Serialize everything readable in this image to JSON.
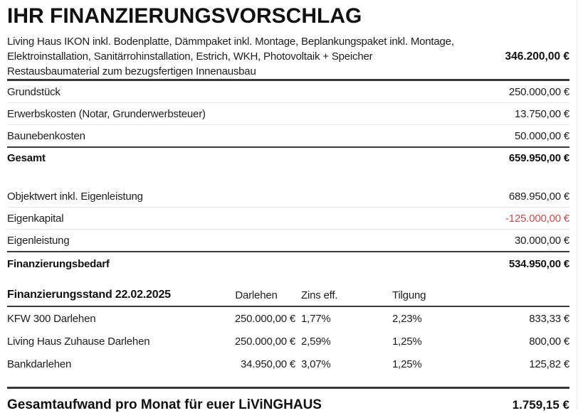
{
  "title": "IHR FINANZIERUNGSVORSCHLAG",
  "house_package": {
    "description_lines": [
      "Living Haus IKON inkl. Bodenplatte, Dämmpaket inkl. Montage, Beplankungspaket inkl. Montage,",
      "Elektroinstallation, Sanitärrohinstallation, Estrich, WKH, Photovoltaik + Speicher",
      "Restausbaumaterial zum bezugsfertigen Innenausbau"
    ],
    "amount": "346.200,00 €"
  },
  "cost_rows": [
    {
      "label": "Grundstück",
      "amount": "250.000,00 €"
    },
    {
      "label": "Erwerbskosten (Notar, Grunderwerbsteuer)",
      "amount": "13.750,00 €"
    },
    {
      "label": "Baunebenkosten",
      "amount": "50.000,00 €"
    }
  ],
  "total_row": {
    "label": "Gesamt",
    "amount": "659.950,00 €"
  },
  "equity_rows": [
    {
      "label": "Objektwert inkl. Eigenleistung",
      "amount": "689.950,00 €"
    },
    {
      "label": "Eigenkapital",
      "amount": "-125.000,00 €"
    },
    {
      "label": "Eigenleistung",
      "amount": "30.000,00 €"
    }
  ],
  "financing_need": {
    "label": "Finanzierungsbedarf",
    "amount": "534.950,00 €"
  },
  "loan_table": {
    "header": {
      "title": "Finanzierungsstand 22.02.2025",
      "darlehen": "Darlehen",
      "zins": "Zins eff.",
      "tilgung": "Tilgung"
    },
    "rows": [
      {
        "name": "KFW 300 Darlehen",
        "darlehen": "250.000,00 €",
        "zins": "1,77%",
        "tilgung": "2,23%",
        "monat": "833,33 €"
      },
      {
        "name": "Living Haus Zuhause Darlehen",
        "darlehen": "250.000,00 €",
        "zins": "2,59%",
        "tilgung": "1,25%",
        "monat": "800,00 €"
      },
      {
        "name": "Bankdarlehen",
        "darlehen": "34.950,00 €",
        "zins": "3,07%",
        "tilgung": "1,25%",
        "monat": "125,82 €"
      }
    ]
  },
  "footer": {
    "label": "Gesamtaufwand pro Monat für euer LiViNGHAUS",
    "amount": "1.759,15 €"
  },
  "colors": {
    "negative_amount": "#c0504d",
    "rule_dark": "#3c3c3c",
    "rule_light": "#e8e8e8",
    "text": "#1d1d1d"
  }
}
